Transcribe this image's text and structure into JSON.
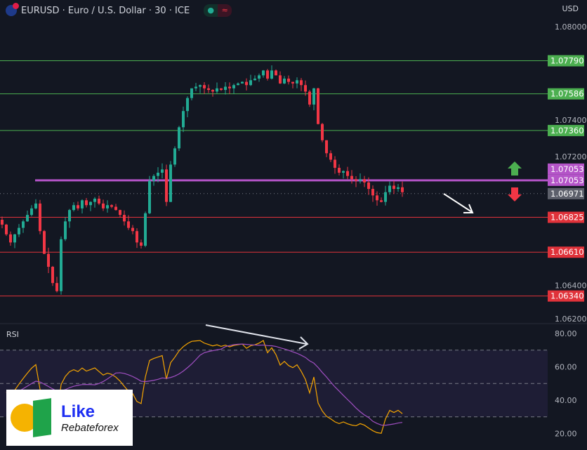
{
  "header": {
    "title": "EURUSD · Euro / U.S. Dollar · 30 · ICE",
    "currency": "USD",
    "status_icon": "market-open-dot",
    "wave_icon": "≈"
  },
  "rsi_label": "RSI",
  "logo": {
    "line1": "Like",
    "line2": "Rebateforex"
  },
  "colors": {
    "up": "#22ab94",
    "down": "#f23645",
    "green_level": "#4caf50",
    "red_level": "#e0323a",
    "purple_level": "#b454c8",
    "rsi": "#f7a600",
    "rsi_ma": "#a04fc2"
  },
  "chart_data": {
    "type": "candlestick",
    "price_axis": {
      "ticks": [
        "1.08000",
        "1.07400",
        "1.07200",
        "1.06400",
        "1.06200"
      ],
      "range": [
        1.062,
        1.08
      ]
    },
    "levels": [
      {
        "price": "1.07790",
        "color": "green"
      },
      {
        "price": "1.07586",
        "color": "green"
      },
      {
        "price": "1.07360",
        "color": "green"
      },
      {
        "price": "1.07053",
        "color": "purple"
      },
      {
        "price": "1.06825",
        "color": "red"
      },
      {
        "price": "1.06610",
        "color": "red"
      },
      {
        "price": "1.06340",
        "color": "red"
      }
    ],
    "extra_labels": [
      {
        "price": "1.07053",
        "color": "purple"
      },
      {
        "price": "1.06971",
        "color": "gray",
        "note": "last price"
      }
    ],
    "closes": [
      1.0678,
      1.0672,
      1.0667,
      1.0672,
      1.0676,
      1.068,
      1.0684,
      1.0688,
      1.0691,
      1.0674,
      1.066,
      1.0652,
      1.0642,
      1.0637,
      1.0669,
      1.068,
      1.0687,
      1.069,
      1.0688,
      1.0693,
      1.069,
      1.0692,
      1.0694,
      1.0691,
      1.0688,
      1.069,
      1.0689,
      1.0687,
      1.0684,
      1.068,
      1.0676,
      1.0674,
      1.0667,
      1.0665,
      1.0685,
      1.0705,
      1.0708,
      1.071,
      1.0712,
      1.0692,
      1.0715,
      1.0725,
      1.0738,
      1.0748,
      1.0756,
      1.0762,
      1.0763,
      1.0764,
      1.0762,
      1.0761,
      1.076,
      1.0762,
      1.0761,
      1.0763,
      1.0762,
      1.0764,
      1.0765,
      1.0766,
      1.0764,
      1.0767,
      1.0768,
      1.077,
      1.0773,
      1.0768,
      1.0773,
      1.077,
      1.0765,
      1.0768,
      1.0766,
      1.0765,
      1.0767,
      1.0764,
      1.076,
      1.0752,
      1.0762,
      1.074,
      1.073,
      1.0722,
      1.0718,
      1.0713,
      1.071,
      1.0711,
      1.0708,
      1.0706,
      1.0705,
      1.0706,
      1.0704,
      1.07,
      1.0696,
      1.0693,
      1.0692,
      1.0698,
      1.0702,
      1.07,
      1.0701,
      1.0698
    ],
    "rsi_axis": {
      "ticks": [
        "80.00",
        "60.00",
        "40.00",
        "20.00"
      ],
      "band": [
        30,
        70
      ],
      "mid": 50
    }
  }
}
